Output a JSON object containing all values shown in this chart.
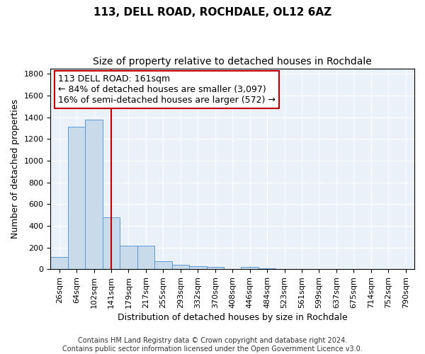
{
  "title": "113, DELL ROAD, ROCHDALE, OL12 6AZ",
  "subtitle": "Size of property relative to detached houses in Rochdale",
  "xlabel": "Distribution of detached houses by size in Rochdale",
  "ylabel": "Number of detached properties",
  "categories": [
    "26sqm",
    "64sqm",
    "102sqm",
    "141sqm",
    "179sqm",
    "217sqm",
    "255sqm",
    "293sqm",
    "332sqm",
    "370sqm",
    "408sqm",
    "446sqm",
    "484sqm",
    "523sqm",
    "561sqm",
    "599sqm",
    "637sqm",
    "675sqm",
    "714sqm",
    "752sqm",
    "790sqm"
  ],
  "values": [
    110,
    1310,
    1380,
    480,
    215,
    215,
    75,
    40,
    25,
    20,
    0,
    20,
    10,
    0,
    0,
    0,
    0,
    0,
    0,
    0,
    0
  ],
  "bar_color": "#c9daea",
  "bar_edge_color": "#5b9bd5",
  "vline_x": 3.0,
  "vline_color": "#c00000",
  "annotation_line1": "113 DELL ROAD: 161sqm",
  "annotation_line2": "← 84% of detached houses are smaller (3,097)",
  "annotation_line3": "16% of semi-detached houses are larger (572) →",
  "annotation_box_color": "#ffffff",
  "annotation_box_edge": "#c00000",
  "ylim": [
    0,
    1850
  ],
  "yticks": [
    0,
    200,
    400,
    600,
    800,
    1000,
    1200,
    1400,
    1600,
    1800
  ],
  "footer": "Contains HM Land Registry data © Crown copyright and database right 2024.\nContains public sector information licensed under the Open Government Licence v3.0.",
  "plot_bg_color": "#eaf1f8",
  "title_fontsize": 11,
  "subtitle_fontsize": 10,
  "tick_fontsize": 8,
  "ylabel_fontsize": 9,
  "xlabel_fontsize": 9,
  "footer_fontsize": 7,
  "annotation_fontsize": 9
}
